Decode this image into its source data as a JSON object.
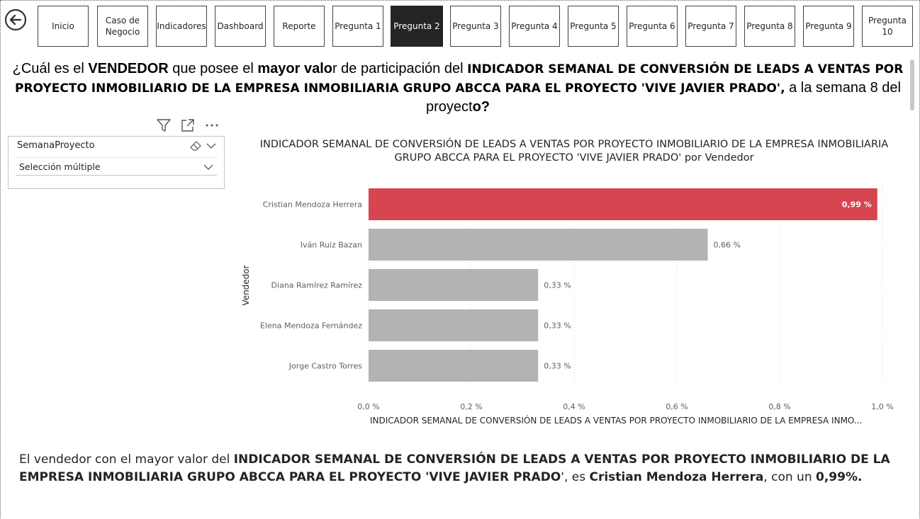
{
  "nav": {
    "items": [
      {
        "label": "Inicio",
        "active": false
      },
      {
        "label": "Caso de\nNegocio",
        "active": false
      },
      {
        "label": "Indicadores",
        "active": false
      },
      {
        "label": "Dashboard",
        "active": false
      },
      {
        "label": "Reporte",
        "active": false
      },
      {
        "label": "Pregunta 1",
        "active": false
      },
      {
        "label": "Pregunta 2",
        "active": true
      },
      {
        "label": "Pregunta 3",
        "active": false
      },
      {
        "label": "Pregunta 4",
        "active": false
      },
      {
        "label": "Pregunta 5",
        "active": false
      },
      {
        "label": "Pregunta 6",
        "active": false
      },
      {
        "label": "Pregunta 7",
        "active": false
      },
      {
        "label": "Pregunta 8",
        "active": false
      },
      {
        "label": "Pregunta 9",
        "active": false
      },
      {
        "label": "Pregunta 10",
        "active": false
      }
    ],
    "back_icon": "arrow-left-circle-icon"
  },
  "question": {
    "p1": "¿Cuál es el ",
    "p2": "VENDEDOR",
    "p3": " que posee el ",
    "p4": "mayor valo",
    "p5": "r de participación del ",
    "p6": "INDICADOR SEMANAL DE CONVERSIÓN DE LEADS A VENTAS POR PROYECTO INMOBILIARIO DE LA EMPRESA INMOBILIARIA GRUPO ABCCA PARA EL PROYECTO 'VIVE JAVIER PRADO',",
    "p7": " a la semana 8 del proyect",
    "p8": "o?"
  },
  "slicer": {
    "title": "SemanaProyecto",
    "selection": "Selección múltiple"
  },
  "chart_data": {
    "type": "bar",
    "orientation": "horizontal",
    "title": "INDICADOR SEMANAL DE CONVERSIÓN DE LEADS A VENTAS POR PROYECTO INMOBILIARIO DE LA EMPRESA INMOBILIARIA GRUPO ABCCA PARA EL PROYECTO 'VIVE JAVIER PRADO' por Vendedor",
    "title_line1": "INDICADOR SEMANAL DE CONVERSIÓN DE LEADS A VENTAS POR PROYECTO INMOBILIARIO DE LA EMPRESA INMOBILIARIA",
    "title_line2": "GRUPO ABCCA PARA EL PROYECTO 'VIVE JAVIER PRADO' por Vendedor",
    "ylabel": "Vendedor",
    "xlabel": "INDICADOR SEMANAL DE CONVERSIÓN DE LEADS A VENTAS POR PROYECTO INMOBILIARIO DE LA EMPRESA INMO...",
    "categories": [
      "Cristian Mendoza Herrera",
      "Iván Ruiz Bazan",
      "Diana Ramírez Ramírez",
      "Elena Mendoza Fernández",
      "Jorge Castro Torres"
    ],
    "values": [
      0.99,
      0.66,
      0.33,
      0.33,
      0.33
    ],
    "data_labels": [
      "0,99 %",
      "0,66 %",
      "0,33 %",
      "0,33 %",
      "0,33 %"
    ],
    "xlim": [
      0,
      1.0
    ],
    "x_ticks": [
      0,
      0.2,
      0.4,
      0.6,
      0.8,
      1.0
    ],
    "x_tick_labels": [
      "0,0 %",
      "0,2 %",
      "0,4 %",
      "0,6 %",
      "0,8 %",
      "1,0 %"
    ],
    "grid": true,
    "highlight_color": "#D64550",
    "bar_color": "#B3B3B3"
  },
  "conclusion": {
    "c1": "El vendedor con el mayor valor del ",
    "c2": "INDICADOR SEMANAL DE CONVERSIÓN DE LEADS A VENTAS POR PROYECTO INMOBILIARIO DE LA EMPRESA INMOBILIARIA GRUPO ABCCA PARA EL PROYECTO 'VIVE JAVIER PRADO",
    "c3": "', es ",
    "c4": "Cristian Mendoza Herrera",
    "c5": ", con un ",
    "c6": "0,99%."
  }
}
